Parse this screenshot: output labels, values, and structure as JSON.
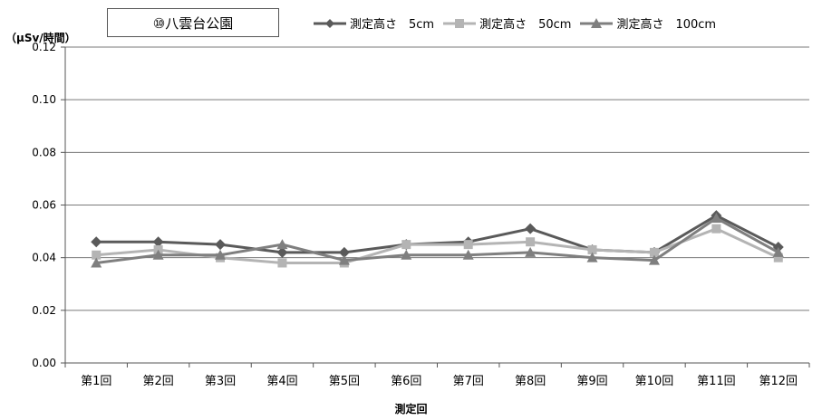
{
  "chart_data": {
    "type": "line",
    "title": "⑩八雲台公園",
    "ylabel": "（μSv/時間）",
    "xlabel": "測定回",
    "ylim": [
      0,
      0.12
    ],
    "yticks": [
      "0.00",
      "0.02",
      "0.04",
      "0.06",
      "0.08",
      "0.10",
      "0.12"
    ],
    "grid": true,
    "legend_position": "top",
    "categories": [
      "第1回",
      "第2回",
      "第3回",
      "第4回",
      "第5回",
      "第6回",
      "第7回",
      "第8回",
      "第9回",
      "第10回",
      "第11回",
      "第12回"
    ],
    "series": [
      {
        "name": "測定高さ　5cm",
        "marker": "diamond",
        "color": "#5a5a5a",
        "values": [
          0.046,
          0.046,
          0.045,
          0.042,
          0.042,
          0.045,
          0.046,
          0.051,
          0.043,
          0.042,
          0.056,
          0.044
        ]
      },
      {
        "name": "測定高さ　50cm",
        "marker": "square",
        "color": "#b4b4b4",
        "values": [
          0.041,
          0.043,
          0.04,
          0.038,
          0.038,
          0.045,
          0.045,
          0.046,
          0.043,
          0.042,
          0.051,
          0.04
        ]
      },
      {
        "name": "測定高さ　100cm",
        "marker": "triangle",
        "color": "#7f7f7f",
        "values": [
          0.038,
          0.041,
          0.041,
          0.045,
          0.039,
          0.041,
          0.041,
          0.042,
          0.04,
          0.039,
          0.055,
          0.042
        ]
      }
    ]
  }
}
